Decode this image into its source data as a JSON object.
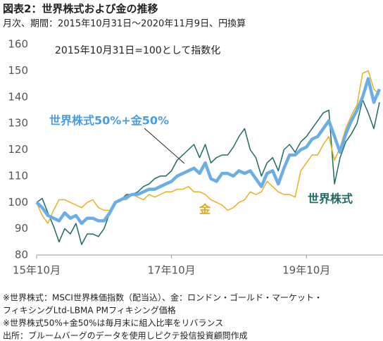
{
  "chart_data": {
    "type": "line",
    "title": "図表2：世界株式および金の推移",
    "subtitle": "月次、期間：2015年10月31日～2020年11月9日、円換算",
    "annotation": "2015年10月31日=100として指数化",
    "categories": [
      "15年10月",
      null,
      null,
      null,
      null,
      null,
      null,
      null,
      null,
      null,
      null,
      null,
      null,
      null,
      null,
      null,
      null,
      null,
      null,
      null,
      null,
      null,
      null,
      null,
      "17年10月",
      null,
      null,
      null,
      null,
      null,
      null,
      null,
      null,
      null,
      null,
      null,
      null,
      null,
      null,
      null,
      null,
      null,
      null,
      null,
      null,
      null,
      null,
      null,
      "19年10月",
      null,
      null,
      null,
      null,
      null,
      null,
      null,
      null,
      null,
      null,
      null,
      null,
      null
    ],
    "series": [
      {
        "name": "世界株式",
        "color": "#1f6b63",
        "width": 1.5,
        "values": [
          100,
          101.5,
          96,
          91,
          85,
          90,
          88,
          92,
          84,
          88,
          88,
          87,
          90,
          96,
          100,
          101,
          103,
          103,
          104,
          106,
          107,
          109,
          110,
          110,
          112,
          116,
          118,
          120,
          122,
          117,
          122,
          115,
          117,
          118,
          118,
          121,
          125,
          128,
          120,
          117,
          110,
          115,
          117,
          112,
          120,
          122,
          119,
          123,
          125,
          128,
          131,
          134,
          135,
          107,
          117,
          123,
          126,
          130,
          139,
          134,
          128,
          138
        ]
      },
      {
        "name": "金",
        "color": "#e8b020",
        "width": 1.5,
        "values": [
          100,
          95,
          92,
          97,
          101,
          101,
          100,
          99,
          98,
          100,
          101,
          98,
          97,
          97,
          100,
          101,
          101,
          103,
          102,
          101,
          103,
          102,
          103,
          104,
          104,
          105,
          105,
          106,
          104,
          104,
          103,
          101,
          100,
          99,
          97,
          98,
          100,
          101,
          104,
          103,
          104,
          108,
          106,
          104,
          103,
          103,
          102,
          112,
          115,
          118,
          118,
          122,
          125,
          116,
          121,
          128,
          133,
          137,
          149,
          150,
          143,
          141
        ]
      },
      {
        "name": "世界株式50%+金50%",
        "color": "#6aaee8",
        "width": 4.5,
        "values": [
          100,
          98,
          95,
          94,
          93,
          96,
          94,
          95,
          92,
          94,
          94,
          93,
          93,
          96,
          100,
          101,
          102,
          103,
          103,
          104,
          105,
          105,
          106,
          107,
          108,
          110,
          111,
          112,
          113,
          111,
          115,
          109,
          108,
          111,
          111,
          110,
          112,
          111,
          112,
          109,
          106,
          111,
          112,
          107,
          113,
          118,
          118,
          120,
          121,
          124,
          125,
          128,
          131,
          125,
          119,
          126,
          131,
          135,
          140,
          147,
          138,
          143
        ]
      }
    ],
    "ylim": [
      80,
      160
    ],
    "yticks": [
      80,
      90,
      100,
      110,
      120,
      130,
      140,
      150,
      160
    ],
    "notes": [
      "※世界株式：MSCI世界株価指数（配当込）、金：ロンドン・ゴールド・マーケット・",
      "フィキシングLtd-LBMA PMフィキシング価格",
      "※世界株式50%+金50%は毎月末に組入比率をリバランス",
      "出所：ブルームバーグのデータを使用しピクテ投信投資顧問作成"
    ]
  }
}
